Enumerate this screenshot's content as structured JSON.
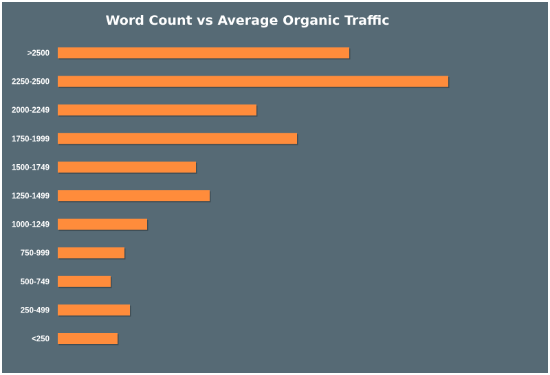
{
  "chart_data": {
    "type": "bar",
    "orientation": "horizontal",
    "title": "Word Count vs Average Organic Traffic",
    "xlabel": "",
    "ylabel": "",
    "categories": [
      ">2500",
      "2250-2500",
      "2000-2249",
      "1750-1999",
      "1500-1749",
      "1250-1499",
      "1000-1249",
      "750-999",
      "500-749",
      "250-499",
      "<250"
    ],
    "values": [
      424,
      568,
      289,
      348,
      201,
      221,
      130,
      97,
      77,
      105,
      87
    ],
    "xlim": [
      0,
      700
    ],
    "grid": false,
    "legend": "none",
    "bar_color": "#ff8c3b",
    "background_color": "#566a75"
  }
}
